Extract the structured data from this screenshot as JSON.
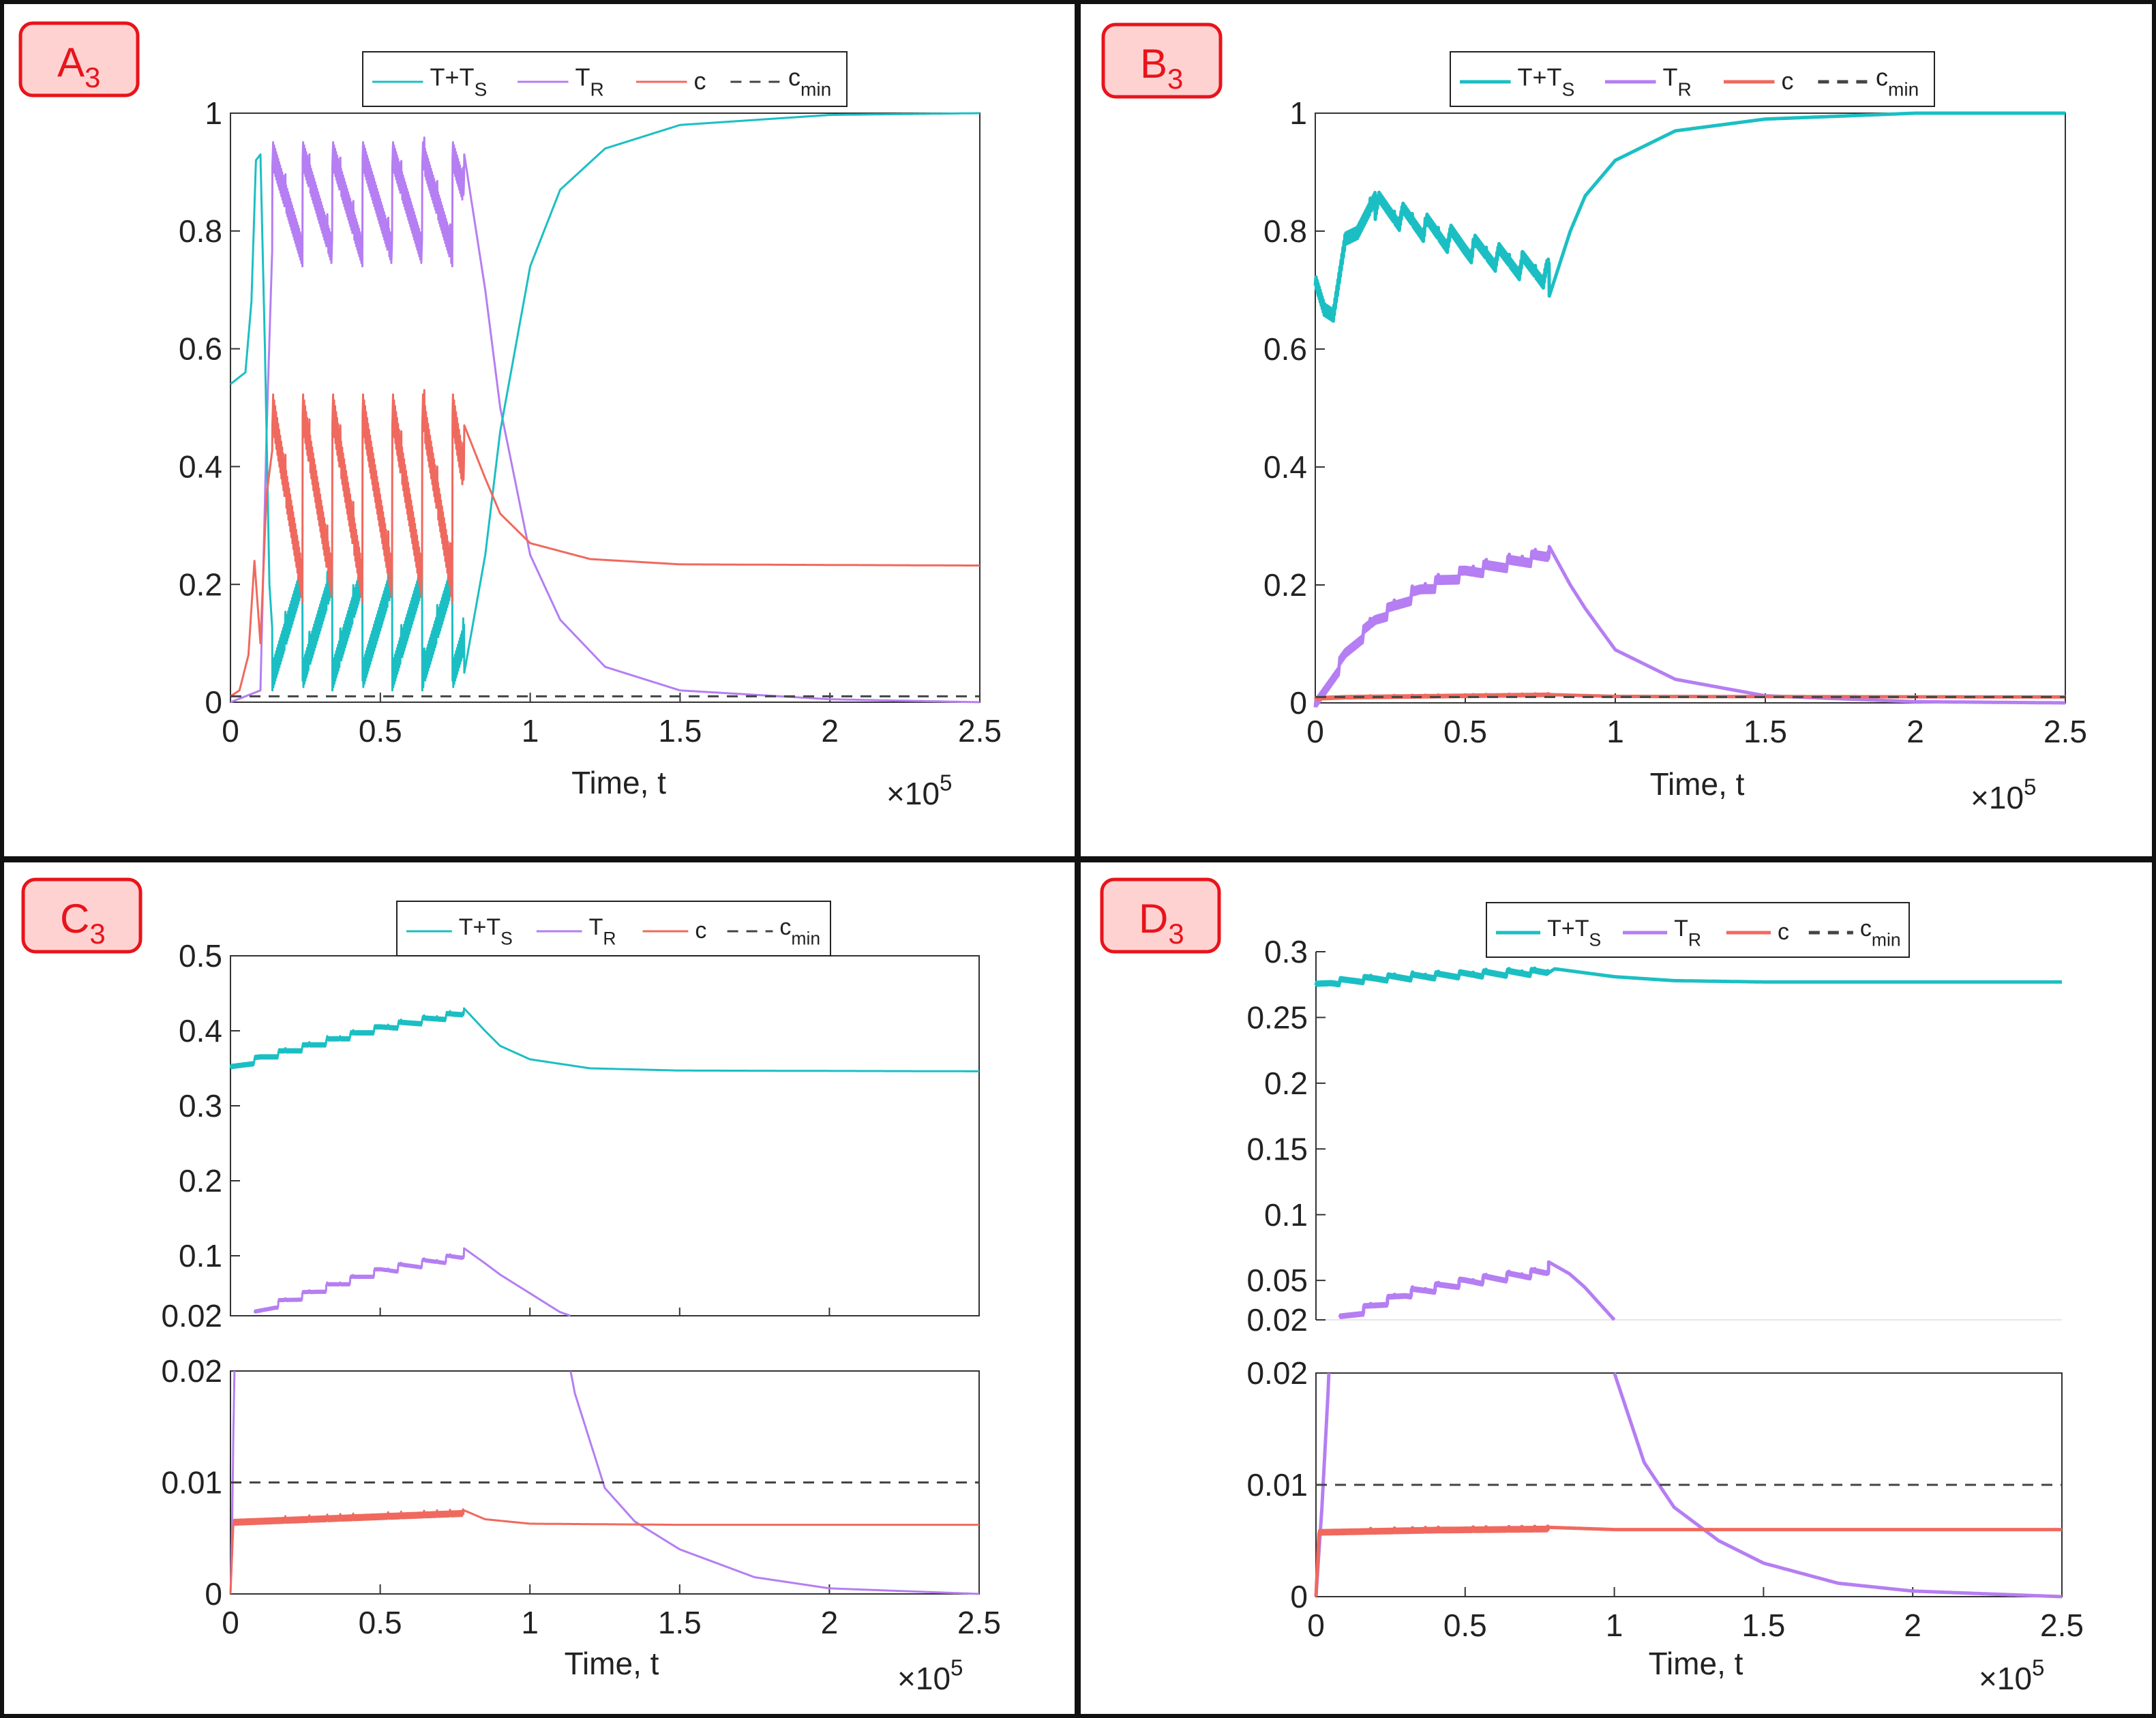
{
  "figure": {
    "colors": {
      "tts": "#1bbfc3",
      "tr": "#b57ef2",
      "c": "#f0695e",
      "cmin": "#444444",
      "badge_fill": "#ffd2d2",
      "badge_border": "#e8141b",
      "badge_text": "#e8141b"
    },
    "legend": {
      "tts": "T+T",
      "tts_sub": "S",
      "tr": "T",
      "tr_sub": "R",
      "c": "c",
      "cmin": "c",
      "cmin_sub": "min"
    },
    "axis": {
      "xlabel": "Time, t",
      "x_multiplier": "×10",
      "x_multiplier_exp": "5",
      "xticks": [
        "0",
        "0.5",
        "1",
        "1.5",
        "2",
        "2.5"
      ]
    },
    "panels": {
      "A": {
        "letter": "A",
        "sub": "3",
        "yticks": [
          "0",
          "0.2",
          "0.4",
          "0.6",
          "0.8",
          "1"
        ]
      },
      "B": {
        "letter": "B",
        "sub": "3",
        "yticks": [
          "0",
          "0.2",
          "0.4",
          "0.6",
          "0.8",
          "1"
        ]
      },
      "C": {
        "letter": "C",
        "sub": "3",
        "upper_yticks": [
          "0.02",
          "0.1",
          "0.2",
          "0.3",
          "0.4",
          "0.5"
        ],
        "lower_yticks": [
          "0",
          "0.01",
          "0.02"
        ]
      },
      "D": {
        "letter": "D",
        "sub": "3",
        "upper_yticks": [
          "0.02",
          "0.05",
          "0.1",
          "0.15",
          "0.2",
          "0.25",
          "0.3"
        ],
        "lower_yticks": [
          "0",
          "0.01",
          "0.02"
        ]
      }
    }
  },
  "chart_data": [
    {
      "panel": "A3",
      "type": "line",
      "title": "A3",
      "xlabel": "Time, t (×10^5)",
      "ylabel": "",
      "xlim": [
        0,
        2.5
      ],
      "ylim": [
        0,
        1
      ],
      "series": [
        {
          "name": "T+T_S",
          "description": "rises 0.54→0.93 by t≈0.1, collapses and oscillates between ~0.05 and ~0.23 until t≈0.78, then recovers to 1",
          "x": [
            0,
            0.05,
            0.1,
            0.14,
            0.78,
            0.9,
            1.0,
            1.25,
            1.5,
            2.0,
            2.5
          ],
          "y": [
            0.54,
            0.6,
            0.93,
            0.12,
            0.05,
            0.46,
            0.74,
            0.94,
            0.98,
            1.0,
            1.0
          ]
        },
        {
          "name": "T_R",
          "description": "oscillates between ~0.77 and ~0.94 during treatment then decays to 0",
          "x": [
            0,
            0.1,
            0.14,
            0.78,
            0.9,
            1.0,
            1.25,
            1.5,
            2.0,
            2.5
          ],
          "y": [
            0,
            0.02,
            0.8,
            0.93,
            0.5,
            0.25,
            0.06,
            0.02,
            0.005,
            0
          ]
        },
        {
          "name": "c",
          "description": "oscillates between ~0.20 and ~0.51 during treatment, then settles at 0.232",
          "x": [
            0,
            0.08,
            0.15,
            0.78,
            1.0,
            1.5,
            2.5
          ],
          "y": [
            0.01,
            0.24,
            0.42,
            0.51,
            0.27,
            0.233,
            0.232
          ]
        },
        {
          "name": "c_min",
          "x": [
            0,
            2.5
          ],
          "y": [
            0.01,
            0.01
          ]
        }
      ]
    },
    {
      "panel": "B3",
      "type": "line",
      "title": "B3",
      "xlabel": "Time, t (×10^5)",
      "ylabel": "",
      "xlim": [
        0,
        2.5
      ],
      "ylim": [
        0,
        1
      ],
      "series": [
        {
          "name": "T+T_S",
          "x": [
            0,
            0.05,
            0.2,
            0.5,
            0.78,
            1.0,
            1.5,
            2.0,
            2.5
          ],
          "y": [
            0.72,
            0.66,
            0.85,
            0.72,
            0.69,
            0.9,
            0.99,
            1.0,
            1.0
          ]
        },
        {
          "name": "T_R",
          "x": [
            0,
            0.1,
            0.2,
            0.5,
            0.78,
            1.0,
            1.5,
            2.0,
            2.5
          ],
          "y": [
            0,
            0.08,
            0.14,
            0.24,
            0.27,
            0.09,
            0.01,
            0.002,
            0
          ]
        },
        {
          "name": "c",
          "x": [
            0,
            0.78,
            1.0,
            2.5
          ],
          "y": [
            0.008,
            0.013,
            0.011,
            0.01
          ]
        },
        {
          "name": "c_min",
          "x": [
            0,
            2.5
          ],
          "y": [
            0.01,
            0.01
          ]
        }
      ]
    },
    {
      "panel": "C3",
      "type": "line",
      "title": "C3",
      "broken_y_axis": true,
      "xlabel": "Time, t (×10^5)",
      "ylabel": "",
      "xlim": [
        0,
        2.5
      ],
      "ylim_upper": [
        0.02,
        0.5
      ],
      "ylim_lower": [
        0,
        0.02
      ],
      "series": [
        {
          "name": "T+T_S",
          "x": [
            0,
            0.3,
            0.6,
            0.78,
            1.0,
            1.5,
            2.5
          ],
          "y": [
            0.345,
            0.38,
            0.41,
            0.43,
            0.36,
            0.347,
            0.346
          ]
        },
        {
          "name": "T_R",
          "x": [
            0,
            0.05,
            0.2,
            0.5,
            0.78,
            1.0,
            1.12,
            1.25,
            1.5,
            2.0,
            2.5
          ],
          "y": [
            0.02,
            0.02,
            0.045,
            0.09,
            0.11,
            0.05,
            0.02,
            0.0095,
            0.004,
            0.0005,
            0
          ]
        },
        {
          "name": "c",
          "x": [
            0,
            0.05,
            0.4,
            0.78,
            1.0,
            1.5,
            2.5
          ],
          "y": [
            0.0065,
            0.0066,
            0.0069,
            0.0075,
            0.0063,
            0.0062,
            0.0062
          ]
        },
        {
          "name": "c_min",
          "x": [
            0,
            2.5
          ],
          "y": [
            0.01,
            0.01
          ]
        }
      ]
    },
    {
      "panel": "D3",
      "type": "line",
      "title": "D3",
      "broken_y_axis": true,
      "xlabel": "Time, t (×10^5)",
      "ylabel": "",
      "xlim": [
        0,
        2.5
      ],
      "ylim_upper": [
        0.02,
        0.3
      ],
      "ylim_lower": [
        0,
        0.02
      ],
      "series": [
        {
          "name": "T+T_S",
          "x": [
            0,
            0.3,
            0.6,
            0.78,
            1.0,
            1.5,
            2.5
          ],
          "y": [
            0.272,
            0.28,
            0.283,
            0.287,
            0.28,
            0.277,
            0.277
          ]
        },
        {
          "name": "T_R",
          "x": [
            0,
            0.05,
            0.2,
            0.5,
            0.78,
            1.0,
            1.2,
            1.5,
            2.0,
            2.5
          ],
          "y": [
            0.02,
            0.02,
            0.035,
            0.055,
            0.064,
            0.02,
            0.008,
            0.003,
            0.0005,
            0
          ]
        },
        {
          "name": "c",
          "x": [
            0,
            0.05,
            0.4,
            0.78,
            1.0,
            1.5,
            2.5
          ],
          "y": [
            0.0057,
            0.006,
            0.0061,
            0.0062,
            0.006,
            0.006,
            0.006
          ]
        },
        {
          "name": "c_min",
          "x": [
            0,
            2.5
          ],
          "y": [
            0.01,
            0.01
          ]
        }
      ]
    }
  ]
}
